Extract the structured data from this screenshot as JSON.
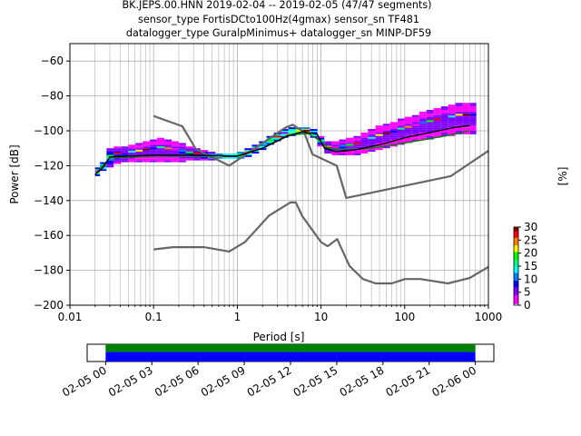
{
  "title": {
    "line1": "BK.JEPS.00.HNN   2019-02-04 -- 2019-02-05  (47/47 segments)",
    "line2": "sensor_type FortisDCto100Hz(4gmax) sensor_sn TF481",
    "line3": "datalogger_type GuralpMinimus+ datalogger_sn MINP-DF59"
  },
  "chart_data": {
    "type": "heatmap",
    "xlabel": "Period [s]",
    "ylabel": "Power [dB]",
    "xscale": "log",
    "xlim": [
      0.01,
      1000
    ],
    "ylim": [
      -200,
      -50
    ],
    "xticks": [
      {
        "v": 0.01,
        "label": "0.01"
      },
      {
        "v": 0.1,
        "label": "0.1"
      },
      {
        "v": 1,
        "label": "1"
      },
      {
        "v": 10,
        "label": "10"
      },
      {
        "v": 100,
        "label": "100"
      },
      {
        "v": 1000,
        "label": "1000"
      }
    ],
    "yticks": [
      -200,
      -180,
      -160,
      -140,
      -120,
      -100,
      -80,
      -60
    ],
    "grid": true,
    "colorbar": {
      "label": "[%]",
      "min": 0,
      "max": 30,
      "ticks": [
        0,
        5,
        10,
        15,
        20,
        25,
        30
      ],
      "colors": [
        "#ffffff",
        "#ff00ff",
        "#8000ff",
        "#0000ff",
        "#0080ff",
        "#00ffff",
        "#00ff80",
        "#00ff00",
        "#ffff00",
        "#ff8000",
        "#ff0000",
        "#800000"
      ]
    },
    "nhnm": {
      "name": "NHNM",
      "color": "#666666",
      "points": [
        [
          0.1,
          -91.5
        ],
        [
          0.22,
          -97.4
        ],
        [
          0.32,
          -110.5
        ],
        [
          0.8,
          -120
        ],
        [
          3.8,
          -98
        ],
        [
          4.6,
          -96.5
        ],
        [
          6.3,
          -101
        ],
        [
          7.9,
          -113.5
        ],
        [
          15.4,
          -120
        ],
        [
          20,
          -138.5
        ],
        [
          354.8,
          -126
        ],
        [
          1000,
          -111.5
        ]
      ]
    },
    "nlnm": {
      "name": "NLNM",
      "color": "#666666",
      "points": [
        [
          0.1,
          -168
        ],
        [
          0.17,
          -166.7
        ],
        [
          0.4,
          -166.7
        ],
        [
          0.8,
          -169.2
        ],
        [
          1.24,
          -163.7
        ],
        [
          2.4,
          -148.6
        ],
        [
          4.3,
          -141.1
        ],
        [
          5,
          -141.1
        ],
        [
          6,
          -149
        ],
        [
          10,
          -163.8
        ],
        [
          12,
          -166.2
        ],
        [
          15.6,
          -162.1
        ],
        [
          21.9,
          -177.5
        ],
        [
          31.6,
          -185
        ],
        [
          45,
          -187.5
        ],
        [
          70,
          -187.5
        ],
        [
          101,
          -185
        ],
        [
          154,
          -185
        ],
        [
          328,
          -187.5
        ],
        [
          600,
          -184.4
        ],
        [
          1000,
          -178
        ]
      ]
    },
    "mode": {
      "name": "mode",
      "color": "#000000",
      "points": [
        [
          0.02,
          -125
        ],
        [
          0.025,
          -121
        ],
        [
          0.03,
          -115
        ],
        [
          0.05,
          -114.5
        ],
        [
          0.1,
          -114
        ],
        [
          0.3,
          -114
        ],
        [
          1,
          -114.5
        ],
        [
          2,
          -110
        ],
        [
          4,
          -103
        ],
        [
          6,
          -100.5
        ],
        [
          9,
          -102
        ],
        [
          11,
          -110
        ],
        [
          15,
          -112
        ],
        [
          25,
          -111
        ],
        [
          50,
          -108
        ],
        [
          100,
          -104
        ],
        [
          200,
          -101
        ],
        [
          400,
          -98
        ],
        [
          600,
          -97
        ]
      ]
    },
    "mean": {
      "name": "mean",
      "color": "#008000",
      "points": [
        [
          0.02,
          -125
        ],
        [
          0.03,
          -115.5
        ],
        [
          0.1,
          -114.5
        ],
        [
          1,
          -114.5
        ],
        [
          2,
          -110
        ],
        [
          4,
          -102.5
        ],
        [
          7,
          -101.5
        ],
        [
          10,
          -106
        ],
        [
          12,
          -110
        ],
        [
          20,
          -111
        ],
        [
          40,
          -110
        ],
        [
          100,
          -107
        ],
        [
          300,
          -103
        ],
        [
          600,
          -100
        ]
      ]
    },
    "density": [
      {
        "p": 0.021,
        "lo": -126,
        "hi": -121,
        "v": 22
      },
      {
        "p": 0.025,
        "lo": -123,
        "hi": -118,
        "v": 18
      },
      {
        "p": 0.03,
        "lo": -121,
        "hi": -110,
        "v": 12
      },
      {
        "p": 0.037,
        "lo": -119,
        "hi": -109,
        "v": 8
      },
      {
        "p": 0.045,
        "lo": -118,
        "hi": -109,
        "v": 7
      },
      {
        "p": 0.055,
        "lo": -118,
        "hi": -108,
        "v": 6
      },
      {
        "p": 0.067,
        "lo": -118,
        "hi": -107,
        "v": 5
      },
      {
        "p": 0.082,
        "lo": -118,
        "hi": -106,
        "v": 5
      },
      {
        "p": 0.1,
        "lo": -118,
        "hi": -105,
        "v": 5
      },
      {
        "p": 0.12,
        "lo": -118,
        "hi": -104,
        "v": 5
      },
      {
        "p": 0.15,
        "lo": -118,
        "hi": -105,
        "v": 5
      },
      {
        "p": 0.18,
        "lo": -118,
        "hi": -106,
        "v": 5
      },
      {
        "p": 0.22,
        "lo": -118,
        "hi": -107,
        "v": 6
      },
      {
        "p": 0.27,
        "lo": -117,
        "hi": -109,
        "v": 7
      },
      {
        "p": 0.33,
        "lo": -117,
        "hi": -110,
        "v": 8
      },
      {
        "p": 0.4,
        "lo": -117,
        "hi": -111,
        "v": 10
      },
      {
        "p": 0.5,
        "lo": -117,
        "hi": -112,
        "v": 14
      },
      {
        "p": 0.6,
        "lo": -116,
        "hi": -113,
        "v": 20
      },
      {
        "p": 0.75,
        "lo": -116,
        "hi": -113,
        "v": 25
      },
      {
        "p": 0.9,
        "lo": -116,
        "hi": -113,
        "v": 25
      },
      {
        "p": 1.1,
        "lo": -116,
        "hi": -112,
        "v": 22
      },
      {
        "p": 1.35,
        "lo": -115,
        "hi": -110,
        "v": 20
      },
      {
        "p": 1.65,
        "lo": -113,
        "hi": -108,
        "v": 18
      },
      {
        "p": 2.0,
        "lo": -111,
        "hi": -106,
        "v": 17
      },
      {
        "p": 2.5,
        "lo": -108,
        "hi": -103,
        "v": 17
      },
      {
        "p": 3.0,
        "lo": -106,
        "hi": -101,
        "v": 18
      },
      {
        "p": 3.7,
        "lo": -104,
        "hi": -99,
        "v": 20
      },
      {
        "p": 4.5,
        "lo": -103,
        "hi": -98,
        "v": 22
      },
      {
        "p": 5.5,
        "lo": -102,
        "hi": -98,
        "v": 24
      },
      {
        "p": 6.7,
        "lo": -102,
        "hi": -98,
        "v": 25
      },
      {
        "p": 8.2,
        "lo": -104,
        "hi": -99,
        "v": 20
      },
      {
        "p": 10,
        "lo": -109,
        "hi": -103,
        "v": 12
      },
      {
        "p": 12,
        "lo": -113,
        "hi": -106,
        "v": 8
      },
      {
        "p": 15,
        "lo": -114,
        "hi": -106,
        "v": 6
      },
      {
        "p": 18,
        "lo": -114,
        "hi": -105,
        "v": 6
      },
      {
        "p": 22,
        "lo": -114,
        "hi": -104,
        "v": 5
      },
      {
        "p": 27,
        "lo": -114,
        "hi": -103,
        "v": 5
      },
      {
        "p": 33,
        "lo": -113,
        "hi": -101,
        "v": 5
      },
      {
        "p": 40,
        "lo": -112,
        "hi": -99,
        "v": 5
      },
      {
        "p": 50,
        "lo": -111,
        "hi": -97,
        "v": 5
      },
      {
        "p": 60,
        "lo": -110,
        "hi": -96,
        "v": 5
      },
      {
        "p": 75,
        "lo": -109,
        "hi": -95,
        "v": 5
      },
      {
        "p": 90,
        "lo": -108,
        "hi": -93,
        "v": 5
      },
      {
        "p": 110,
        "lo": -107,
        "hi": -92,
        "v": 5
      },
      {
        "p": 135,
        "lo": -106,
        "hi": -91,
        "v": 5
      },
      {
        "p": 165,
        "lo": -105,
        "hi": -89,
        "v": 5
      },
      {
        "p": 200,
        "lo": -105,
        "hi": -88,
        "v": 5
      },
      {
        "p": 245,
        "lo": -104,
        "hi": -87,
        "v": 5
      },
      {
        "p": 300,
        "lo": -103,
        "hi": -86,
        "v": 5
      },
      {
        "p": 365,
        "lo": -103,
        "hi": -85,
        "v": 5
      },
      {
        "p": 445,
        "lo": -102,
        "hi": -84,
        "v": 5
      },
      {
        "p": 545,
        "lo": -102,
        "hi": -84,
        "v": 5
      },
      {
        "p": 665,
        "lo": -102,
        "hi": -84,
        "v": 5
      }
    ]
  },
  "timeline": {
    "ticks": [
      "02-05 00",
      "02-05 03",
      "02-05 06",
      "02-05 09",
      "02-05 12",
      "02-05 15",
      "02-05 18",
      "02-05 21",
      "02-06 00"
    ],
    "start_hour": -1.2,
    "end_hour": 25.2,
    "data_start_hour": 0,
    "data_end_hour": 24,
    "top_color": "#008000",
    "bottom_color": "#0000ff"
  }
}
